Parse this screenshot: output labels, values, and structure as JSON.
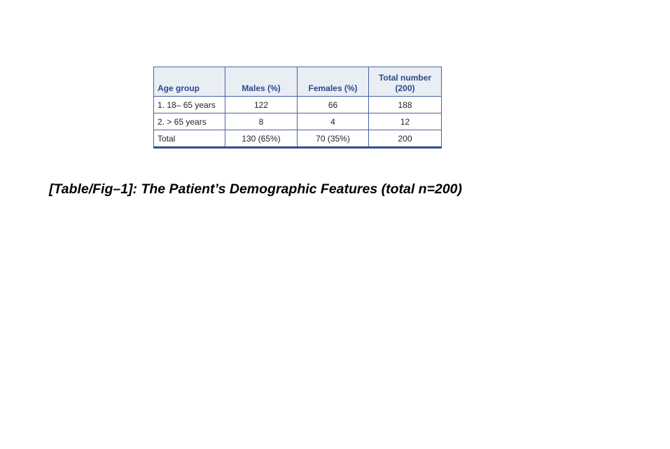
{
  "table": {
    "headers": [
      "Age group",
      "Males (%)",
      "Females (%)",
      "Total number (200)"
    ],
    "rows": [
      [
        "1. 18– 65 years",
        "122",
        "66",
        "188"
      ],
      [
        "2. > 65 years",
        "8",
        "4",
        "12"
      ],
      [
        "Total",
        "130 (65%)",
        "70 (35%)",
        "200"
      ]
    ]
  },
  "caption": "[Table/Fig–1]: The Patient’s Demographic Features (total n=200)",
  "colors": {
    "header_text": "#2b4a8c",
    "header_bg": "#e9edf4",
    "border": "#4a64a0"
  }
}
